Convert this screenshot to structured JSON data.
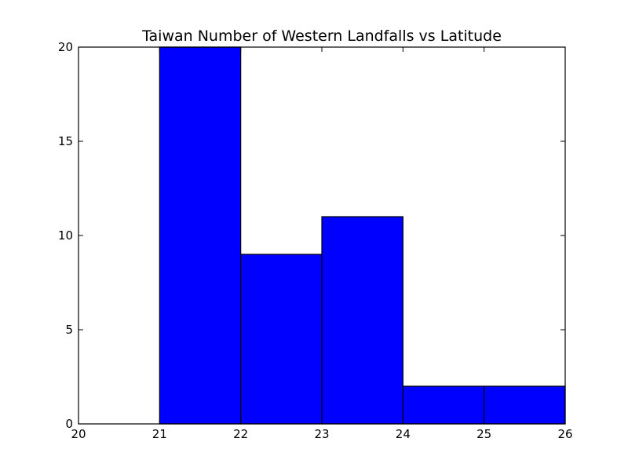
{
  "chart_data": {
    "type": "bar",
    "title": "Taiwan Number of Western Landfalls vs Latitude",
    "xlabel": "",
    "ylabel": "",
    "bins": [
      {
        "x0": 20,
        "x1": 21,
        "value": 0
      },
      {
        "x0": 21,
        "x1": 22,
        "value": 20
      },
      {
        "x0": 22,
        "x1": 23,
        "value": 9
      },
      {
        "x0": 23,
        "x1": 24,
        "value": 11
      },
      {
        "x0": 24,
        "x1": 25,
        "value": 2
      },
      {
        "x0": 25,
        "x1": 26,
        "value": 2
      }
    ],
    "xlim": [
      20,
      26
    ],
    "ylim": [
      0,
      20
    ],
    "xticks": [
      20,
      21,
      22,
      23,
      24,
      25,
      26
    ],
    "yticks": [
      0,
      5,
      10,
      15,
      20
    ],
    "xtick_labels": [
      "20",
      "21",
      "22",
      "23",
      "24",
      "25",
      "26"
    ],
    "ytick_labels": [
      "0",
      "5",
      "10",
      "15",
      "20"
    ],
    "grid": false,
    "colors": {
      "bar": "#0000ff",
      "edge": "#000000"
    }
  }
}
